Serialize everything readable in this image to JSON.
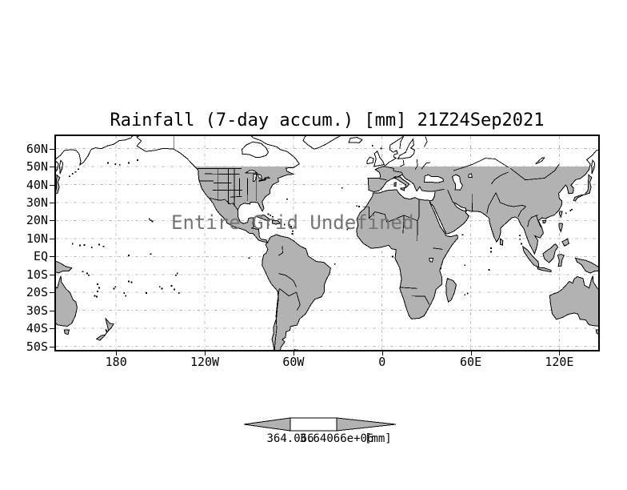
{
  "title": "Rainfall (7-day accum.) [mm] 21Z24Sep2021",
  "map": {
    "message": "Entire Grid Undefined",
    "y_ticks": [
      {
        "label": "60N",
        "lat": 60
      },
      {
        "label": "50N",
        "lat": 50
      },
      {
        "label": "40N",
        "lat": 40
      },
      {
        "label": "30N",
        "lat": 30
      },
      {
        "label": "20N",
        "lat": 20
      },
      {
        "label": "10N",
        "lat": 10
      },
      {
        "label": "EQ",
        "lat": 0
      },
      {
        "label": "10S",
        "lat": -10
      },
      {
        "label": "20S",
        "lat": -20
      },
      {
        "label": "30S",
        "lat": -30
      },
      {
        "label": "40S",
        "lat": -40
      },
      {
        "label": "50S",
        "lat": -50
      }
    ],
    "x_ticks": [
      {
        "label": "180",
        "lon": -180
      },
      {
        "label": "120W",
        "lon": -120
      },
      {
        "label": "60W",
        "lon": -60
      },
      {
        "label": "0",
        "lon": 0
      },
      {
        "label": "60E",
        "lon": 60
      },
      {
        "label": "120E",
        "lon": 120
      }
    ]
  },
  "colorbar": {
    "left_value": "364.066",
    "right_value": "3.64066e+06",
    "unit": "[mm]"
  },
  "colors": {
    "background": "#ffffff",
    "land_fill": "#b2b2b2",
    "coastline": "#000000",
    "gridline": "#c0c0c0",
    "message_text": "#757575",
    "frame": "#000000",
    "colorbar_arrow_fill": "#b2b2b2",
    "colorbar_box_fill": "#ffffff"
  }
}
